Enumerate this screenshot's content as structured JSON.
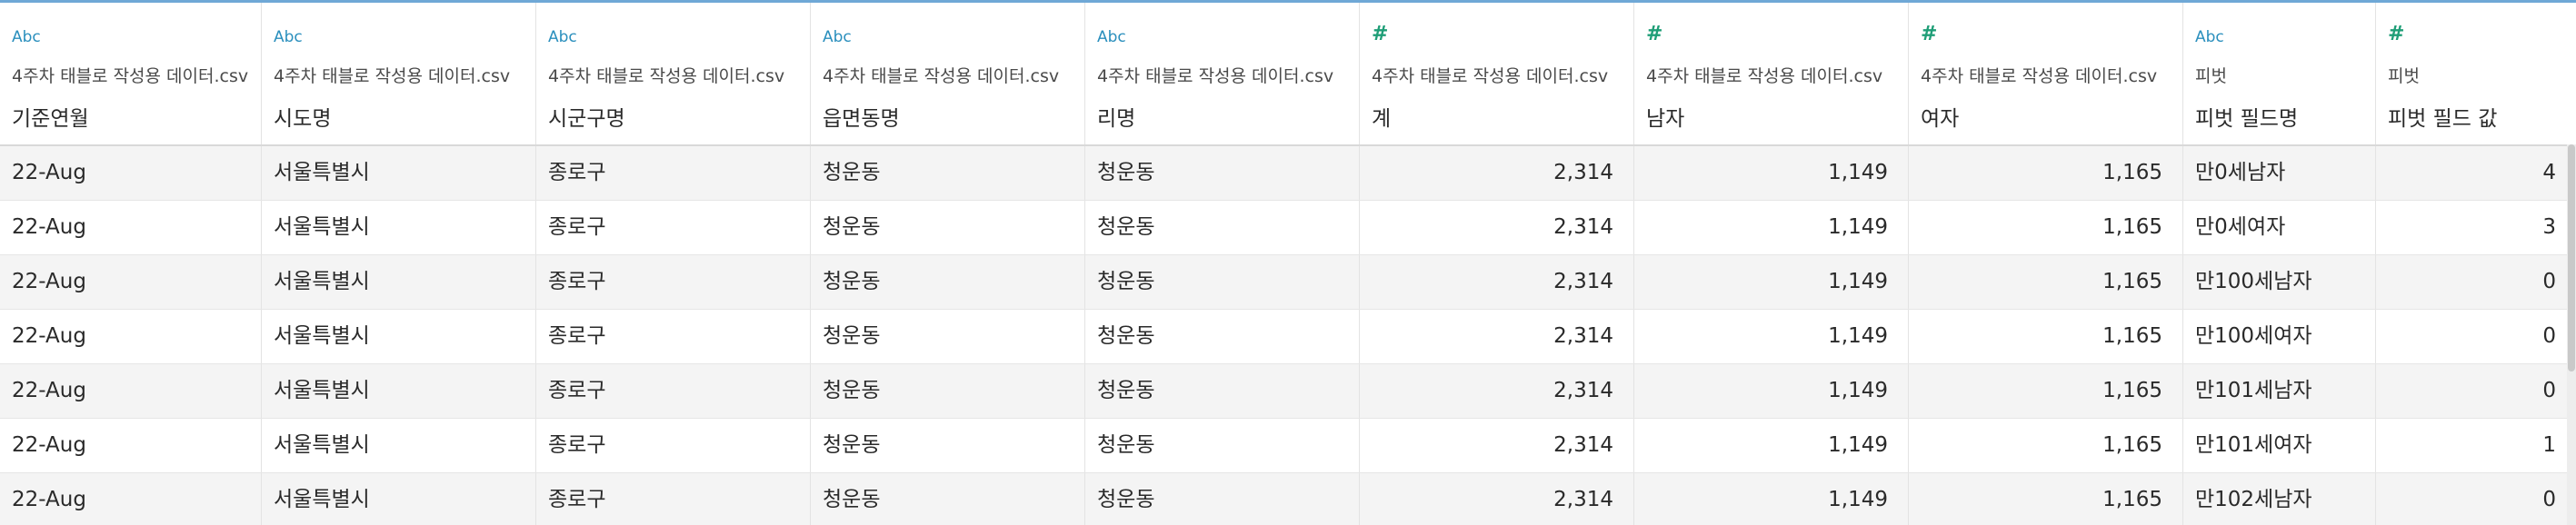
{
  "columns": [
    {
      "type_icon": "Abc",
      "type": "string",
      "source": "4주차 태블로 작성용 데이터.csv",
      "name": "기준연월",
      "align": "text"
    },
    {
      "type_icon": "Abc",
      "type": "string",
      "source": "4주차 태블로 작성용 데이터.csv",
      "name": "시도명",
      "align": "text"
    },
    {
      "type_icon": "Abc",
      "type": "string",
      "source": "4주차 태블로 작성용 데이터.csv",
      "name": "시군구명",
      "align": "text"
    },
    {
      "type_icon": "Abc",
      "type": "string",
      "source": "4주차 태블로 작성용 데이터.csv",
      "name": "읍면동명",
      "align": "text"
    },
    {
      "type_icon": "Abc",
      "type": "string",
      "source": "4주차 태블로 작성용 데이터.csv",
      "name": "리명",
      "align": "text"
    },
    {
      "type_icon": "#",
      "type": "number",
      "source": "4주차 태블로 작성용 데이터.csv",
      "name": "계",
      "align": "num"
    },
    {
      "type_icon": "#",
      "type": "number",
      "source": "4주차 태블로 작성용 데이터.csv",
      "name": "남자",
      "align": "num"
    },
    {
      "type_icon": "#",
      "type": "number",
      "source": "4주차 태블로 작성용 데이터.csv",
      "name": "여자",
      "align": "num"
    },
    {
      "type_icon": "Abc",
      "type": "string",
      "source": "피벗",
      "name": "피벗 필드명",
      "align": "text"
    },
    {
      "type_icon": "#",
      "type": "number",
      "source": "피벗",
      "name": "피벗 필드 값",
      "align": "num"
    }
  ],
  "rows": [
    [
      "22-Aug",
      "서울특별시",
      "종로구",
      "청운동",
      "청운동",
      "2,314",
      "1,149",
      "1,165",
      "만0세남자",
      "4"
    ],
    [
      "22-Aug",
      "서울특별시",
      "종로구",
      "청운동",
      "청운동",
      "2,314",
      "1,149",
      "1,165",
      "만0세여자",
      "3"
    ],
    [
      "22-Aug",
      "서울특별시",
      "종로구",
      "청운동",
      "청운동",
      "2,314",
      "1,149",
      "1,165",
      "만100세남자",
      "0"
    ],
    [
      "22-Aug",
      "서울특별시",
      "종로구",
      "청운동",
      "청운동",
      "2,314",
      "1,149",
      "1,165",
      "만100세여자",
      "0"
    ],
    [
      "22-Aug",
      "서울특별시",
      "종로구",
      "청운동",
      "청운동",
      "2,314",
      "1,149",
      "1,165",
      "만101세남자",
      "0"
    ],
    [
      "22-Aug",
      "서울특별시",
      "종로구",
      "청운동",
      "청운동",
      "2,314",
      "1,149",
      "1,165",
      "만101세여자",
      "1"
    ],
    [
      "22-Aug",
      "서울특별시",
      "종로구",
      "청운동",
      "청운동",
      "2,314",
      "1,149",
      "1,165",
      "만102세남자",
      "0"
    ]
  ],
  "colors": {
    "string_icon": "#2a8fbd",
    "number_icon": "#1f9e77",
    "row_shade": "#f4f4f4",
    "top_accent": "#6fa8d6"
  }
}
